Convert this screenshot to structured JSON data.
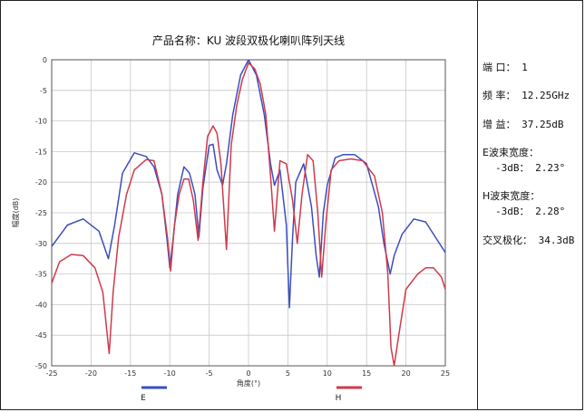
{
  "chart_data": {
    "type": "line",
    "title": "产品名称：KU 波段双极化喇叭阵列天线",
    "xlabel": "角度(°)",
    "ylabel": "幅度(dB)",
    "xlim": [
      -25,
      25
    ],
    "ylim": [
      -50,
      0
    ],
    "xticks": [
      -25,
      -20,
      -15,
      -10,
      -5,
      0,
      5,
      10,
      15,
      20,
      25
    ],
    "yticks": [
      0,
      -5,
      -10,
      -15,
      -20,
      -25,
      -30,
      -35,
      -40,
      -45,
      -50
    ],
    "grid": true,
    "legend_position": "bottom",
    "series": [
      {
        "name": "E",
        "color": "#3a4fbf",
        "x": [
          -25,
          -23,
          -21,
          -19,
          -17.8,
          -17,
          -16,
          -14.5,
          -13,
          -12,
          -11,
          -10.3,
          -10,
          -9.6,
          -9,
          -8.2,
          -7.5,
          -6.8,
          -6.3,
          -5.8,
          -5,
          -4.5,
          -4,
          -3.3,
          -2.8,
          -2,
          -1,
          0,
          1,
          2,
          2.8,
          3.3,
          4,
          4.8,
          5.2,
          5.6,
          6,
          7,
          8,
          8.6,
          9,
          9.5,
          10,
          11,
          12,
          13.5,
          15,
          16.5,
          17.2,
          18,
          18.5,
          19.5,
          21,
          22.5,
          24,
          25
        ],
        "y": [
          -30.5,
          -27,
          -26,
          -28,
          -32.5,
          -27,
          -18.5,
          -15.2,
          -15.8,
          -17.5,
          -22,
          -30,
          -34,
          -29.5,
          -22,
          -17.5,
          -18.5,
          -22,
          -29,
          -21,
          -14,
          -13.8,
          -18,
          -20.5,
          -17,
          -9,
          -2.5,
          0,
          -2.5,
          -9,
          -17,
          -20.5,
          -18,
          -27,
          -40.5,
          -29,
          -20,
          -17,
          -24,
          -32,
          -35.5,
          -25,
          -20.5,
          -16,
          -15.5,
          -15.5,
          -17,
          -24,
          -30,
          -35,
          -32,
          -28.5,
          -26,
          -26.5,
          -29.5,
          -31.5
        ]
      },
      {
        "name": "H",
        "color": "#d03a4c",
        "x": [
          -25,
          -24,
          -22.5,
          -21,
          -19.5,
          -18.5,
          -17.7,
          -17.2,
          -16.5,
          -15.5,
          -14.5,
          -13,
          -12,
          -11,
          -10.3,
          -9.9,
          -9.4,
          -8.8,
          -8.2,
          -7.6,
          -7,
          -6.4,
          -5.8,
          -5.2,
          -4.5,
          -4,
          -3.5,
          -2.8,
          -2.2,
          -1.5,
          -0.8,
          0,
          0.8,
          1.5,
          2.2,
          2.8,
          3.3,
          4,
          4.8,
          5.6,
          6.2,
          6.8,
          7.5,
          8.2,
          8.8,
          9.3,
          9.8,
          10.5,
          11.5,
          13,
          14.5,
          16,
          17,
          17.7,
          18.1,
          18.5,
          19.2,
          20,
          21.5,
          22.5,
          23.5,
          24.5,
          25
        ],
        "y": [
          -36.5,
          -33,
          -31.8,
          -32,
          -34,
          -38,
          -48,
          -38,
          -29,
          -22,
          -18,
          -16.3,
          -16.5,
          -22,
          -29,
          -34.5,
          -27,
          -22,
          -19.5,
          -19.5,
          -23,
          -29.5,
          -20,
          -12.5,
          -10.8,
          -12,
          -17,
          -31,
          -14,
          -7.5,
          -3.3,
          -0.5,
          -1.5,
          -4,
          -9,
          -19,
          -28,
          -16.5,
          -17,
          -23,
          -30,
          -22,
          -15.5,
          -16.5,
          -25,
          -35.5,
          -27,
          -18,
          -16.5,
          -16.2,
          -16.5,
          -19,
          -25,
          -35,
          -47,
          -50,
          -44,
          -37.5,
          -35,
          -34,
          -34,
          -35.5,
          -37.5
        ]
      }
    ]
  },
  "specs": {
    "port": {
      "label": "端 口：",
      "value": "1"
    },
    "freq": {
      "label": "频 率：",
      "value": "12.25GHz"
    },
    "gain": {
      "label": "增 益：",
      "value": "37.25dB"
    },
    "e_bw": {
      "label": "E波束宽度：",
      "sub": "-3dB： 2.23°"
    },
    "h_bw": {
      "label": "H波束宽度：",
      "sub": "-3dB： 2.28°"
    },
    "xpol": {
      "label": "交叉极化：",
      "value": "34.3dB"
    }
  }
}
